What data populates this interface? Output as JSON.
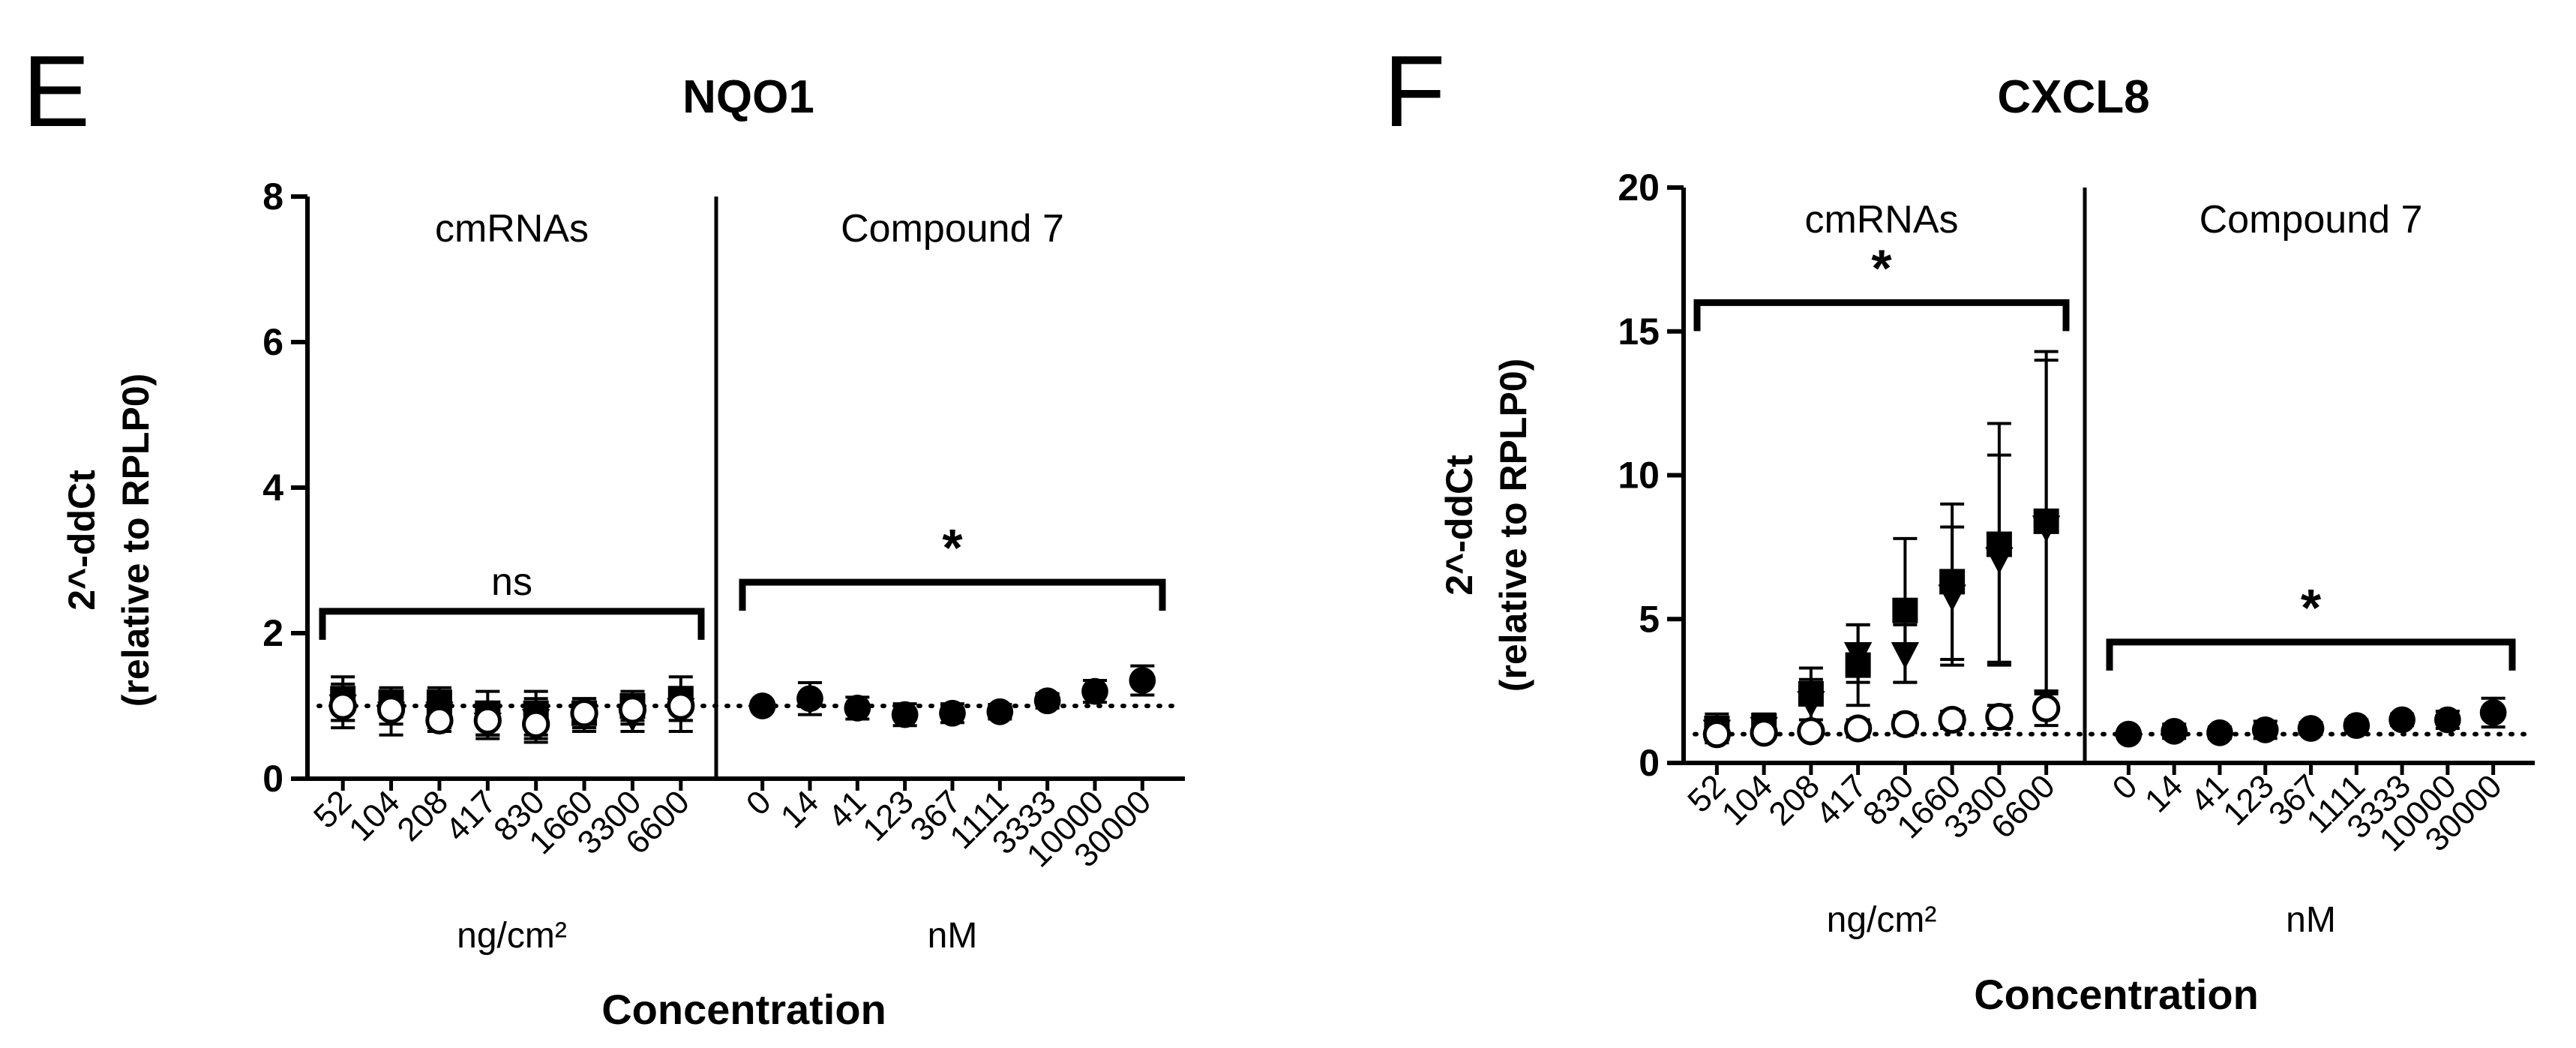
{
  "chart_data": [
    {
      "panel": "E",
      "type": "scatter",
      "title": "NQO1",
      "ylabel": [
        "2^-ddCt",
        "(relative to RPLP0)"
      ],
      "xlabel": "Concentration",
      "ylim": [
        0,
        8
      ],
      "yticks": [
        "0",
        "2",
        "4",
        "6",
        "8"
      ],
      "groups": [
        {
          "label": "cmRNAs",
          "unit": "ng/cm²",
          "categories": [
            "52",
            "104",
            "208",
            "417",
            "830",
            "1660",
            "3300",
            "6600"
          ],
          "significance": "ns",
          "bracket_y": 2.3,
          "series": [
            {
              "marker": "square",
              "values": [
                1.1,
                1.05,
                1.05,
                0.9,
                0.9,
                0.9,
                1.0,
                1.1
              ],
              "errors": [
                0.3,
                0.2,
                0.2,
                0.3,
                0.3,
                0.2,
                0.2,
                0.3
              ]
            },
            {
              "marker": "triangle-down",
              "values": [
                1.0,
                0.9,
                0.9,
                0.75,
                0.8,
                0.85,
                0.85,
                0.95
              ],
              "errors": [
                0.3,
                0.3,
                0.2,
                0.2,
                0.3,
                0.2,
                0.2,
                0.3
              ]
            },
            {
              "marker": "circle-open",
              "values": [
                1.0,
                0.95,
                0.8,
                0.8,
                0.75,
                0.9,
                0.95,
                1.0
              ],
              "errors": [
                0.2,
                0.2,
                0.15,
                0.2,
                0.2,
                0.2,
                0.2,
                0.2
              ]
            }
          ]
        },
        {
          "label": "Compound 7",
          "unit": "nM",
          "categories": [
            "0",
            "14",
            "41",
            "123",
            "367",
            "1111",
            "3333",
            "10000",
            "30000"
          ],
          "significance": "*",
          "bracket_y": 2.7,
          "series": [
            {
              "marker": "circle",
              "values": [
                1.0,
                1.1,
                0.97,
                0.88,
                0.9,
                0.92,
                1.07,
                1.2,
                1.35
              ],
              "errors": [
                0,
                0.22,
                0.15,
                0.15,
                0.13,
                0.1,
                0.1,
                0.15,
                0.2
              ]
            }
          ]
        }
      ],
      "baseline": 1
    },
    {
      "panel": "F",
      "type": "scatter",
      "title": "CXCL8",
      "ylabel": [
        "2^-ddCt",
        "(relative to RPLP0)"
      ],
      "xlabel": "Concentration",
      "ylim": [
        0,
        20
      ],
      "yticks": [
        "0",
        "5",
        "10",
        "15",
        "20"
      ],
      "groups": [
        {
          "label": "cmRNAs",
          "unit": "ng/cm²",
          "categories": [
            "52",
            "104",
            "208",
            "417",
            "830",
            "1660",
            "3300",
            "6600"
          ],
          "significance": "*",
          "bracket_y": 16,
          "series": [
            {
              "marker": "square",
              "values": [
                1.2,
                1.3,
                2.4,
                3.4,
                5.3,
                6.3,
                7.6,
                8.4
              ],
              "errors": [
                0.5,
                0.4,
                0.9,
                1.4,
                2.5,
                2.7,
                4.2,
                5.9
              ]
            },
            {
              "marker": "triangle-down",
              "values": [
                1.1,
                1.2,
                2.1,
                3.8,
                3.8,
                5.8,
                7.1,
                8.2
              ],
              "errors": [
                0.4,
                0.3,
                0.8,
                1.0,
                1.0,
                2.4,
                3.6,
                5.8
              ]
            },
            {
              "marker": "circle-open",
              "values": [
                1.0,
                1.05,
                1.1,
                1.2,
                1.35,
                1.5,
                1.6,
                1.9
              ],
              "errors": [
                0.2,
                0.2,
                0.2,
                0.3,
                0.3,
                0.3,
                0.4,
                0.6
              ]
            }
          ]
        },
        {
          "label": "Compound 7",
          "unit": "nM",
          "categories": [
            "0",
            "14",
            "41",
            "123",
            "367",
            "1111",
            "3333",
            "10000",
            "30000"
          ],
          "significance": "*",
          "bracket_y": 4.2,
          "series": [
            {
              "marker": "circle",
              "values": [
                1.0,
                1.1,
                1.05,
                1.15,
                1.2,
                1.3,
                1.5,
                1.5,
                1.75
              ],
              "errors": [
                0,
                0.25,
                0.2,
                0.3,
                0.2,
                0.2,
                0.2,
                0.3,
                0.5
              ]
            }
          ]
        }
      ],
      "baseline": 1
    }
  ]
}
